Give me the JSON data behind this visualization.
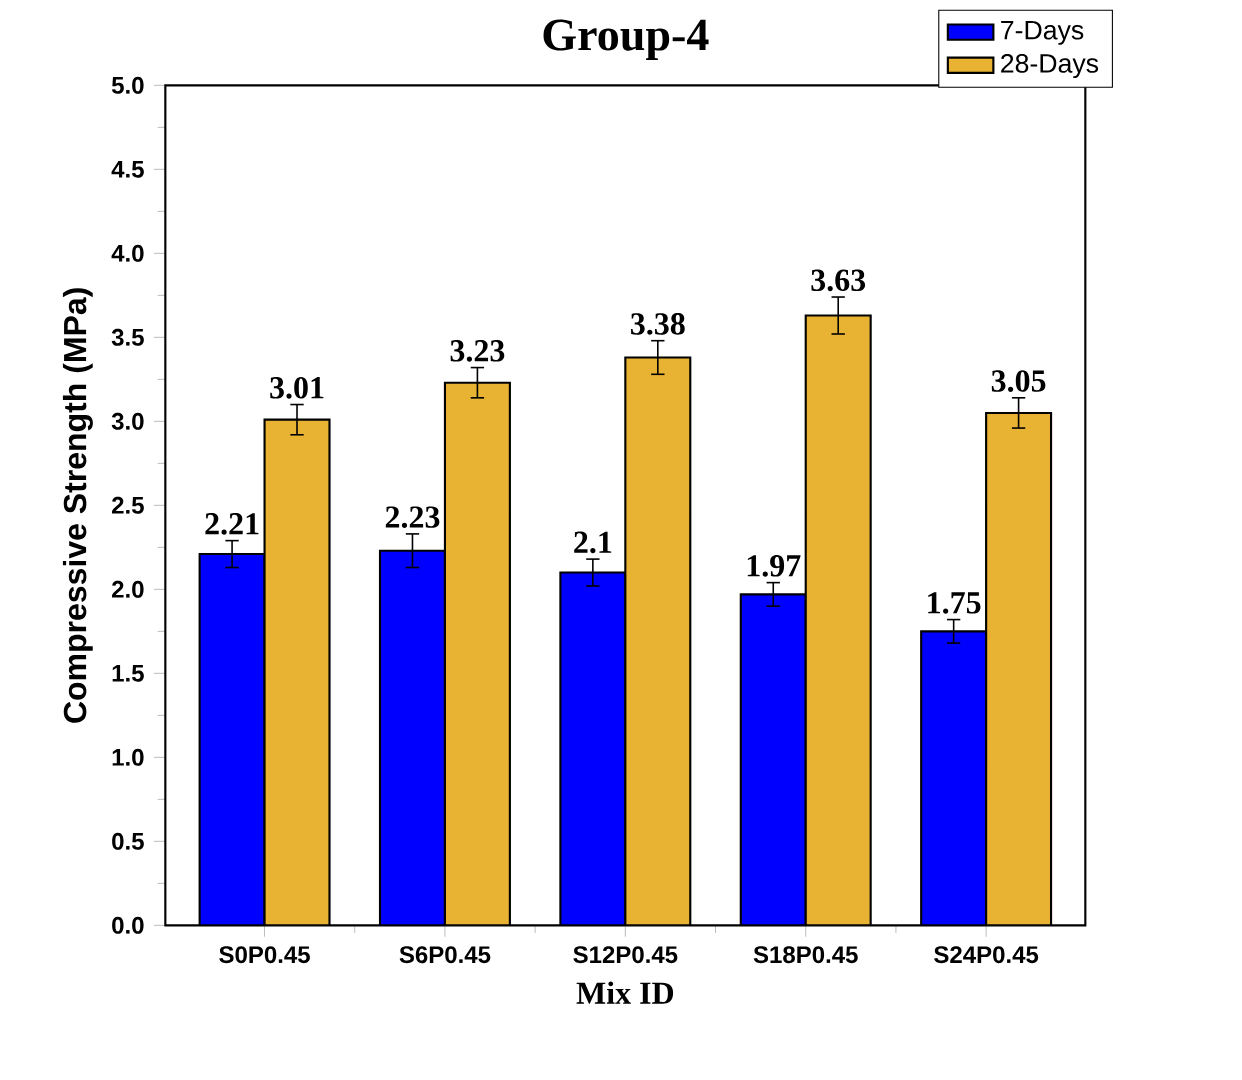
{
  "chart_data": {
    "type": "bar",
    "title": "Group-4",
    "xlabel": "Mix ID",
    "ylabel": "Compressive Strength (MPa)",
    "categories": [
      "S0P0.45",
      "S6P0.45",
      "S12P0.45",
      "S18P0.45",
      "S24P0.45"
    ],
    "series": [
      {
        "name": "7-Days",
        "color": "#0000ff",
        "values": [
          2.21,
          2.23,
          2.1,
          1.97,
          1.75
        ],
        "errors": [
          0.08,
          0.1,
          0.08,
          0.07,
          0.07
        ]
      },
      {
        "name": "28-Days",
        "color": "#e8b232",
        "values": [
          3.01,
          3.23,
          3.38,
          3.63,
          3.05
        ],
        "errors": [
          0.09,
          0.09,
          0.1,
          0.11,
          0.09
        ]
      }
    ],
    "ylim": [
      0,
      5
    ],
    "yticks": [
      {
        "value": 0,
        "label": "0.0"
      },
      {
        "value": 0.5,
        "label": "0.5"
      },
      {
        "value": 1,
        "label": "1.0"
      },
      {
        "value": 1.5,
        "label": "1.5"
      },
      {
        "value": 2,
        "label": "2.0"
      },
      {
        "value": 2.5,
        "label": "2.5"
      },
      {
        "value": 3,
        "label": "3.0"
      },
      {
        "value": 3.5,
        "label": "3.5"
      },
      {
        "value": 4,
        "label": "4.0"
      },
      {
        "value": 4.5,
        "label": "4.5"
      },
      {
        "value": 5,
        "label": "5.0"
      }
    ],
    "data_labels": true,
    "legend": "top right"
  }
}
